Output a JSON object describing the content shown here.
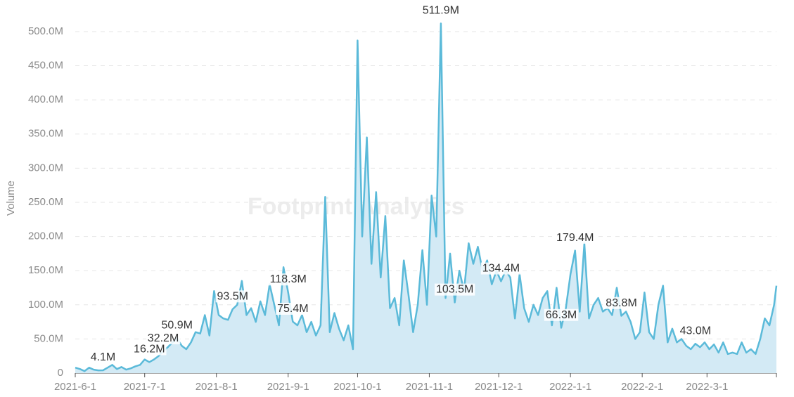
{
  "chart_data": {
    "type": "area",
    "y_label": "Volume",
    "watermark": "Footprint Analytics",
    "color": "#5bbad9",
    "fill": "#d3eaf5",
    "x": [
      "2021-6-1",
      "2021-6-3",
      "2021-6-5",
      "2021-6-7",
      "2021-6-9",
      "2021-6-11",
      "2021-6-13",
      "2021-6-15",
      "2021-6-17",
      "2021-6-19",
      "2021-6-21",
      "2021-6-23",
      "2021-6-25",
      "2021-6-27",
      "2021-6-29",
      "2021-7-1",
      "2021-7-3",
      "2021-7-5",
      "2021-7-7",
      "2021-7-9",
      "2021-7-11",
      "2021-7-13",
      "2021-7-15",
      "2021-7-17",
      "2021-7-19",
      "2021-7-21",
      "2021-7-23",
      "2021-7-25",
      "2021-7-27",
      "2021-7-29",
      "2021-7-31",
      "2021-8-2",
      "2021-8-4",
      "2021-8-6",
      "2021-8-8",
      "2021-8-10",
      "2021-8-12",
      "2021-8-14",
      "2021-8-16",
      "2021-8-18",
      "2021-8-20",
      "2021-8-22",
      "2021-8-24",
      "2021-8-26",
      "2021-8-28",
      "2021-8-30",
      "2021-9-1",
      "2021-9-3",
      "2021-9-5",
      "2021-9-7",
      "2021-9-9",
      "2021-9-11",
      "2021-9-13",
      "2021-9-15",
      "2021-9-17",
      "2021-9-19",
      "2021-9-21",
      "2021-9-23",
      "2021-9-25",
      "2021-9-27",
      "2021-9-29",
      "2021-10-1",
      "2021-10-3",
      "2021-10-5",
      "2021-10-7",
      "2021-10-9",
      "2021-10-11",
      "2021-10-13",
      "2021-10-15",
      "2021-10-17",
      "2021-10-19",
      "2021-10-21",
      "2021-10-23",
      "2021-10-25",
      "2021-10-27",
      "2021-10-29",
      "2021-10-31",
      "2021-11-2",
      "2021-11-4",
      "2021-11-6",
      "2021-11-8",
      "2021-11-10",
      "2021-11-12",
      "2021-11-14",
      "2021-11-16",
      "2021-11-18",
      "2021-11-20",
      "2021-11-22",
      "2021-11-24",
      "2021-11-26",
      "2021-11-28",
      "2021-11-30",
      "2021-12-2",
      "2021-12-4",
      "2021-12-6",
      "2021-12-8",
      "2021-12-10",
      "2021-12-12",
      "2021-12-14",
      "2021-12-16",
      "2021-12-18",
      "2021-12-20",
      "2021-12-22",
      "2021-12-24",
      "2021-12-26",
      "2021-12-28",
      "2021-12-30",
      "2022-1-1",
      "2022-1-3",
      "2022-1-5",
      "2022-1-7",
      "2022-1-9",
      "2022-1-11",
      "2022-1-13",
      "2022-1-15",
      "2022-1-17",
      "2022-1-19",
      "2022-1-21",
      "2022-1-23",
      "2022-1-25",
      "2022-1-27",
      "2022-1-29",
      "2022-1-31",
      "2022-2-2",
      "2022-2-4",
      "2022-2-6",
      "2022-2-8",
      "2022-2-10",
      "2022-2-12",
      "2022-2-14",
      "2022-2-16",
      "2022-2-18",
      "2022-2-20",
      "2022-2-22",
      "2022-2-24",
      "2022-2-26",
      "2022-2-28",
      "2022-3-2",
      "2022-3-4",
      "2022-3-6",
      "2022-3-8",
      "2022-3-10",
      "2022-3-12",
      "2022-3-14",
      "2022-3-16",
      "2022-3-18",
      "2022-3-20",
      "2022-3-22",
      "2022-3-24",
      "2022-3-26",
      "2022-3-28",
      "2022-3-30",
      "2022-3-31"
    ],
    "values": [
      8,
      6,
      3,
      8,
      5,
      4,
      4.1,
      8,
      12,
      6,
      9,
      5,
      7,
      10,
      12,
      20,
      16.2,
      20,
      25,
      32.2,
      38,
      45,
      50.9,
      40,
      35,
      45,
      60,
      58,
      85,
      55,
      120,
      85,
      80,
      78,
      93.5,
      100,
      135,
      85,
      95,
      75,
      105,
      85,
      130,
      100,
      70,
      155,
      118.3,
      75.4,
      70,
      85,
      60,
      75,
      55,
      70,
      258,
      60,
      88,
      65,
      48,
      70,
      35,
      487,
      200,
      345,
      160,
      265,
      140,
      230,
      95,
      110,
      70,
      165,
      115,
      60,
      100,
      180,
      100,
      260,
      200,
      511.9,
      110,
      175,
      103.5,
      150,
      120,
      190,
      160,
      185,
      150,
      165,
      130,
      150,
      134.4,
      150,
      140,
      80,
      145,
      95,
      75,
      100,
      85,
      110,
      120,
      70,
      125,
      66.3,
      95,
      145,
      179.4,
      90,
      190,
      80,
      100,
      110,
      90,
      95,
      85,
      125,
      83.8,
      90,
      75,
      50,
      60,
      118,
      60,
      50,
      100,
      128,
      45,
      65,
      45,
      50,
      40,
      35,
      43.0,
      38,
      45,
      35,
      42,
      30,
      45,
      28,
      30,
      28,
      45,
      30,
      35,
      28,
      50,
      80,
      70,
      100,
      128
    ],
    "value_labels": [
      null,
      null,
      null,
      null,
      null,
      null,
      "4.1M",
      null,
      null,
      null,
      null,
      null,
      null,
      null,
      null,
      null,
      "16.2M",
      null,
      null,
      "32.2M",
      null,
      null,
      "50.9M",
      null,
      null,
      null,
      null,
      null,
      null,
      null,
      null,
      null,
      null,
      null,
      "93.5M",
      null,
      null,
      null,
      null,
      null,
      null,
      null,
      null,
      null,
      null,
      null,
      "118.3M",
      "75.4M",
      null,
      null,
      null,
      null,
      null,
      null,
      null,
      null,
      null,
      null,
      null,
      null,
      null,
      null,
      null,
      null,
      null,
      null,
      null,
      null,
      null,
      null,
      null,
      null,
      null,
      null,
      null,
      null,
      null,
      null,
      null,
      "511.9M",
      null,
      null,
      "103.5M",
      null,
      null,
      null,
      null,
      null,
      null,
      null,
      null,
      null,
      "134.4M",
      null,
      null,
      null,
      null,
      null,
      null,
      null,
      null,
      null,
      null,
      null,
      null,
      "66.3M",
      null,
      null,
      "179.4M",
      null,
      null,
      null,
      null,
      null,
      null,
      null,
      null,
      null,
      "83.8M",
      null,
      null,
      null,
      null,
      null,
      null,
      null,
      null,
      null,
      null,
      null,
      null,
      null,
      null,
      null,
      "43.0M",
      null,
      null,
      null,
      null,
      null,
      null,
      null,
      null,
      null,
      null,
      null,
      null,
      null,
      null,
      null,
      null,
      null,
      null
    ],
    "xlim": [
      "2021-6-1",
      "2022-3-31"
    ],
    "xticks": [
      "2021-6-1",
      "2021-7-1",
      "2021-8-1",
      "2021-9-1",
      "2021-10-1",
      "2021-11-1",
      "2021-12-1",
      "2022-1-1",
      "2022-2-1",
      "2022-3-1"
    ],
    "ylim": [
      0,
      520
    ],
    "yticks": [
      0,
      {
        "value": 50,
        "label": "50.0M"
      },
      {
        "value": 100,
        "label": "100.0M"
      },
      {
        "value": 150,
        "label": "150.0M"
      },
      {
        "value": 200,
        "label": "200.0M"
      },
      {
        "value": 250,
        "label": "250.0M"
      },
      {
        "value": 300,
        "label": "300.0M"
      },
      {
        "value": 350,
        "label": "350.0M"
      },
      {
        "value": 400,
        "label": "400.0M"
      },
      {
        "value": 450,
        "label": "450.0M"
      },
      {
        "value": 500,
        "label": "500.0M"
      }
    ],
    "grid": true
  }
}
